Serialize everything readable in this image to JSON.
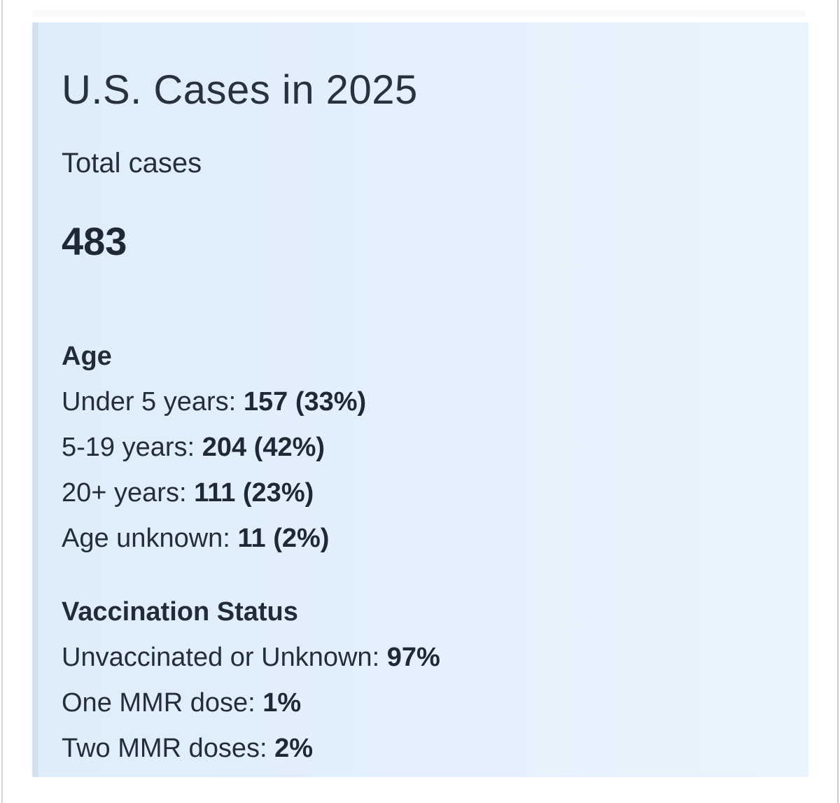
{
  "page": {
    "background": "#ffffff",
    "left_rule_color": "#d2d6da",
    "right_rule_color": "#c9cdd1"
  },
  "card": {
    "title": "U.S. Cases in 2025",
    "total_label": "Total cases",
    "total_value": "483",
    "background_left": "#deedfa",
    "background_right": "#eaf4fe",
    "left_edge_color": "#d4e0ee",
    "text_color": "#242e38",
    "sections": [
      {
        "heading": "Age",
        "rows": [
          {
            "label": "Under 5 years:",
            "value": "157 (33%)"
          },
          {
            "label": "5-19 years:",
            "value": "204 (42%)"
          },
          {
            "label": "20+ years:",
            "value": "111 (23%)"
          },
          {
            "label": "Age unknown:",
            "value": "11 (2%)"
          }
        ]
      },
      {
        "heading": "Vaccination Status",
        "rows": [
          {
            "label": "Unvaccinated or Unknown:",
            "value": "97%"
          },
          {
            "label": "One MMR dose:",
            "value": "1%"
          },
          {
            "label": "Two MMR doses:",
            "value": "2%"
          }
        ]
      }
    ]
  }
}
